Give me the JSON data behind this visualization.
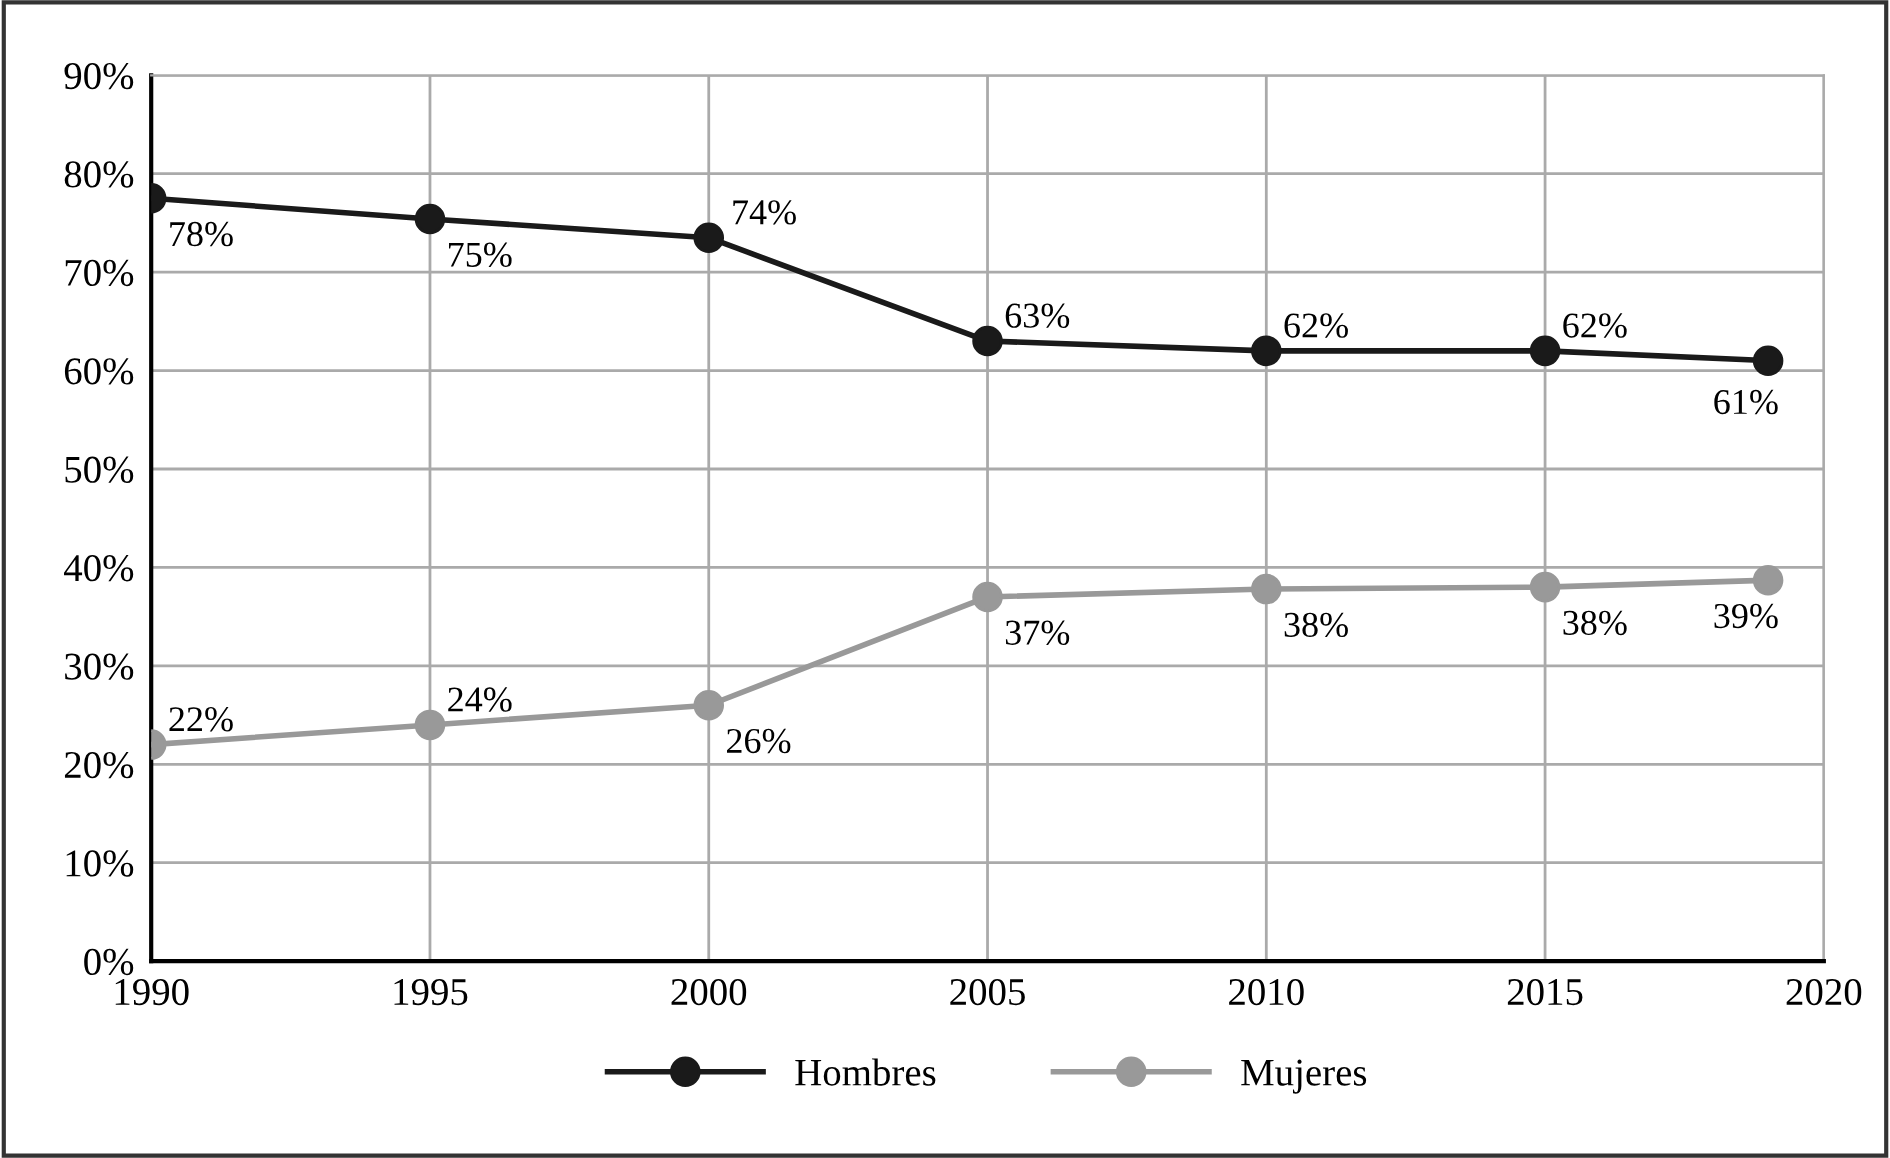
{
  "chart_data": {
    "type": "line",
    "x": [
      1990,
      1995,
      2000,
      2005,
      2010,
      2015,
      2019
    ],
    "series": [
      {
        "name": "Hombres",
        "color": "#1a1a1a",
        "values": [
          77.5,
          75.4,
          73.5,
          63,
          62,
          62,
          61
        ],
        "value_labels": [
          "78%",
          "75%",
          "74%",
          "63%",
          "62%",
          "62%",
          "61%"
        ]
      },
      {
        "name": "Mujeres",
        "color": "#999999",
        "values": [
          22,
          24,
          26,
          37,
          37.8,
          38,
          38.7
        ],
        "value_labels": [
          "22%",
          "24%",
          "26%",
          "37%",
          "38%",
          "38%",
          "39%"
        ]
      }
    ],
    "xlim": [
      1990,
      2020
    ],
    "xticks": [
      1990,
      1995,
      2000,
      2005,
      2010,
      2015,
      2020
    ],
    "ylim": [
      0,
      90
    ],
    "yticks": [
      {
        "value": 0,
        "label": "0%"
      },
      {
        "value": 10,
        "label": "10%"
      },
      {
        "value": 20,
        "label": "20%"
      },
      {
        "value": 30,
        "label": "30%"
      },
      {
        "value": 40,
        "label": "40%"
      },
      {
        "value": 50,
        "label": "50%"
      },
      {
        "value": 60,
        "label": "60%"
      },
      {
        "value": 70,
        "label": "70%"
      },
      {
        "value": 80,
        "label": "80%"
      },
      {
        "value": 90,
        "label": "90%"
      }
    ],
    "grid": true,
    "legend": "bottom",
    "marker": "circle",
    "line_style": "solid"
  }
}
